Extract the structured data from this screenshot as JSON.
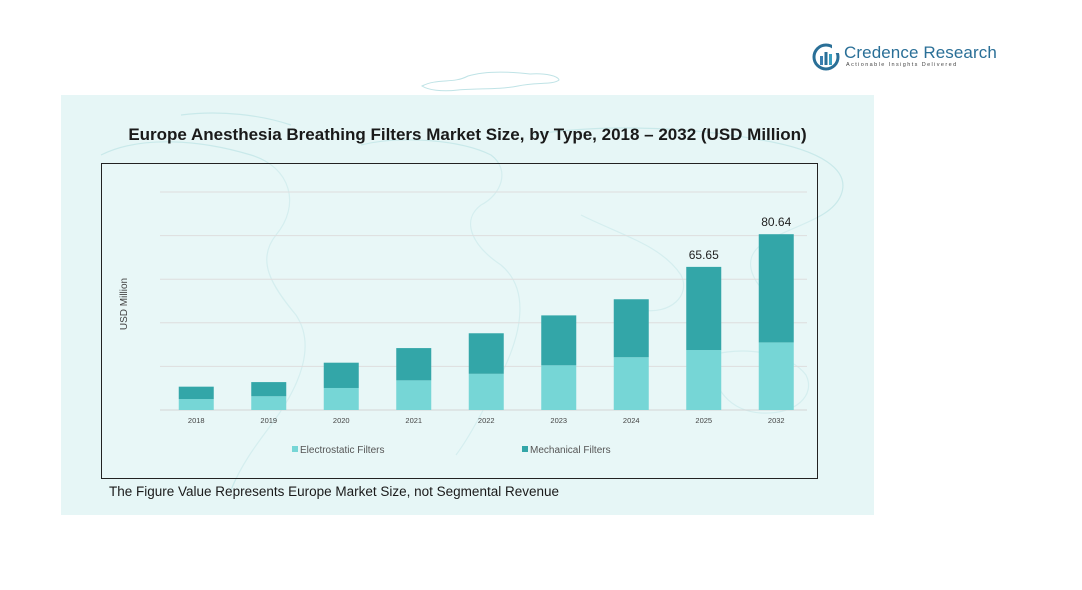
{
  "brand": {
    "name_first": "Credence",
    "name_second": "Research",
    "tagline": "Actionable Insights Delivered"
  },
  "colors": {
    "electrostatic": "#76d6d6",
    "mechanical": "#33a6a8",
    "panel": "#e6f6f6",
    "brand": "#2a6f97"
  },
  "chart": {
    "title": "Europe Anesthesia Breathing Filters Market Size, by Type, 2018 – 2032 (USD Million)",
    "footnote": "The Figure Value Represents Europe Market Size, not Segmental Revenue"
  },
  "chart_data": {
    "type": "bar",
    "stacked": true,
    "title": "Europe Anesthesia Breathing Filters Market Size, by Type, 2018 – 2032 (USD Million)",
    "xlabel": "",
    "ylabel": "USD Million",
    "categories": [
      "2018",
      "2019",
      "2020",
      "2021",
      "2022",
      "2023",
      "2024",
      "2025",
      "2032"
    ],
    "series": [
      {
        "name": "Electrostatic Filters",
        "values": [
          5.0,
          6.3,
          10.1,
          13.6,
          16.6,
          20.5,
          24.2,
          27.5,
          31.0
        ]
      },
      {
        "name": "Mechanical Filters",
        "values": [
          5.7,
          6.5,
          11.6,
          14.8,
          18.6,
          22.9,
          26.6,
          38.15,
          49.64
        ]
      }
    ],
    "data_labels": {
      "2025": "65.65",
      "2032": "80.64"
    },
    "ylim": [
      0,
      100
    ],
    "grid": true,
    "legend": "bottom"
  }
}
